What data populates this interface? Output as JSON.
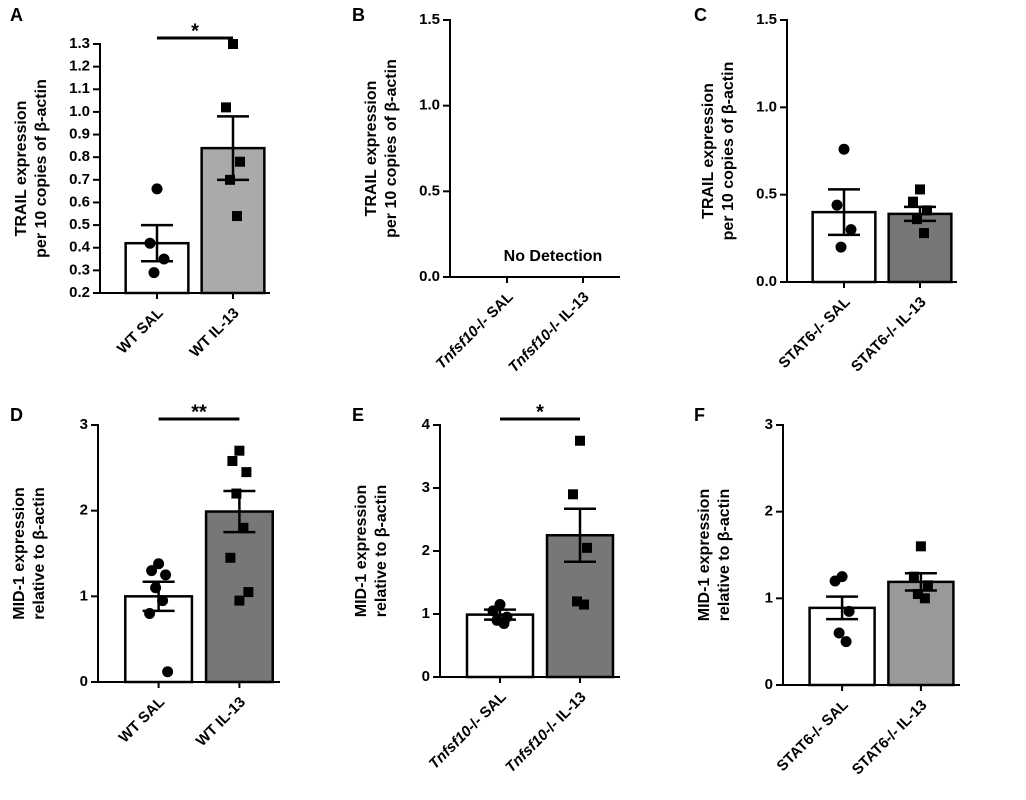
{
  "chart_data": [
    {
      "type": "bar",
      "panel": "A",
      "ylabel": [
        "TRAIL expression",
        "per 10 copies of β-actin"
      ],
      "categories": [
        "WT SAL",
        "WT IL-13"
      ],
      "values": [
        0.42,
        0.84
      ],
      "errors": [
        0.08,
        0.14
      ],
      "colors": [
        "#ffffff",
        "#aaaaaa"
      ],
      "markers": [
        "circle",
        "square"
      ],
      "points": [
        [
          0.66,
          0.42,
          0.35,
          0.29
        ],
        [
          1.3,
          1.02,
          0.78,
          0.7,
          0.54
        ]
      ],
      "ylim": [
        0.2,
        1.3
      ],
      "yticks": [
        0.2,
        0.3,
        0.4,
        0.5,
        0.6,
        0.7,
        0.8,
        0.9,
        {
          "value": 1,
          "label": "1.0"
        },
        1.1,
        1.2,
        1.3
      ],
      "significance": "*"
    },
    {
      "type": "bar",
      "panel": "B",
      "ylabel": [
        "TRAIL expression",
        "per 10 copies of β-actin"
      ],
      "categories": [
        "Tnfsf10-/- SAL",
        "Tnfsf10-/- IL-13"
      ],
      "category_italic": "Tnfsf10",
      "ylim": [
        0,
        1.5
      ],
      "yticks": [
        {
          "value": 0,
          "label": "0.0"
        },
        0.5,
        {
          "value": 1,
          "label": "1.0"
        },
        1.5
      ],
      "annotation": "No Detection"
    },
    {
      "type": "bar",
      "panel": "C",
      "ylabel": [
        "TRAIL expression",
        "per 10 copies of β-actin"
      ],
      "categories": [
        "STAT6-/- SAL",
        "STAT6-/- IL-13"
      ],
      "values": [
        0.4,
        0.39
      ],
      "errors": [
        0.13,
        0.04
      ],
      "colors": [
        "#ffffff",
        "#777777"
      ],
      "markers": [
        "circle",
        "square"
      ],
      "points": [
        [
          0.76,
          0.44,
          0.3,
          0.2
        ],
        [
          0.53,
          0.46,
          0.41,
          0.36,
          0.28
        ]
      ],
      "ylim": [
        0,
        1.5
      ],
      "yticks": [
        {
          "value": 0,
          "label": "0.0"
        },
        0.5,
        {
          "value": 1,
          "label": "1.0"
        },
        1.5
      ]
    },
    {
      "type": "bar",
      "panel": "D",
      "ylabel": [
        "MID-1 expression",
        "relative to β-actin"
      ],
      "categories": [
        "WT SAL",
        "WT IL-13"
      ],
      "values": [
        1.0,
        1.99
      ],
      "errors": [
        0.17,
        0.24
      ],
      "colors": [
        "#ffffff",
        "#777777"
      ],
      "markers": [
        "circle",
        "square"
      ],
      "points": [
        [
          1.38,
          1.3,
          1.25,
          1.1,
          0.95,
          0.8,
          0.12
        ],
        [
          2.7,
          2.58,
          2.45,
          2.2,
          1.8,
          1.45,
          1.05,
          0.95
        ]
      ],
      "ylim": [
        0,
        3
      ],
      "yticks": [
        0,
        1,
        2,
        3
      ],
      "significance": "**"
    },
    {
      "type": "bar",
      "panel": "E",
      "ylabel": [
        "MID-1 expression",
        "relative to β-actin"
      ],
      "categories": [
        "Tnfsf10-/- SAL",
        "Tnfsf10-/- IL-13"
      ],
      "category_italic": "Tnfsf10",
      "values": [
        0.99,
        2.25
      ],
      "errors": [
        0.08,
        0.42
      ],
      "colors": [
        "#ffffff",
        "#777777"
      ],
      "markers": [
        "circle",
        "square"
      ],
      "points": [
        [
          1.15,
          1.05,
          0.95,
          0.9,
          0.85
        ],
        [
          3.75,
          2.9,
          2.05,
          1.2,
          1.15
        ]
      ],
      "ylim": [
        0,
        4
      ],
      "yticks": [
        0,
        1,
        2,
        3,
        4
      ],
      "significance": "*"
    },
    {
      "type": "bar",
      "panel": "F",
      "ylabel": [
        "MID-1 expression",
        "relative to β-actin"
      ],
      "categories": [
        "STAT6-/- SAL",
        "STAT6-/- IL-13"
      ],
      "values": [
        0.89,
        1.19
      ],
      "errors": [
        0.13,
        0.1
      ],
      "colors": [
        "#ffffff",
        "#999999"
      ],
      "markers": [
        "circle",
        "square"
      ],
      "points": [
        [
          1.25,
          1.2,
          0.85,
          0.6,
          0.5
        ],
        [
          1.6,
          1.25,
          1.15,
          1.05,
          1.0
        ]
      ],
      "ylim": [
        0,
        3
      ],
      "yticks": [
        0,
        1,
        2,
        3
      ]
    }
  ]
}
